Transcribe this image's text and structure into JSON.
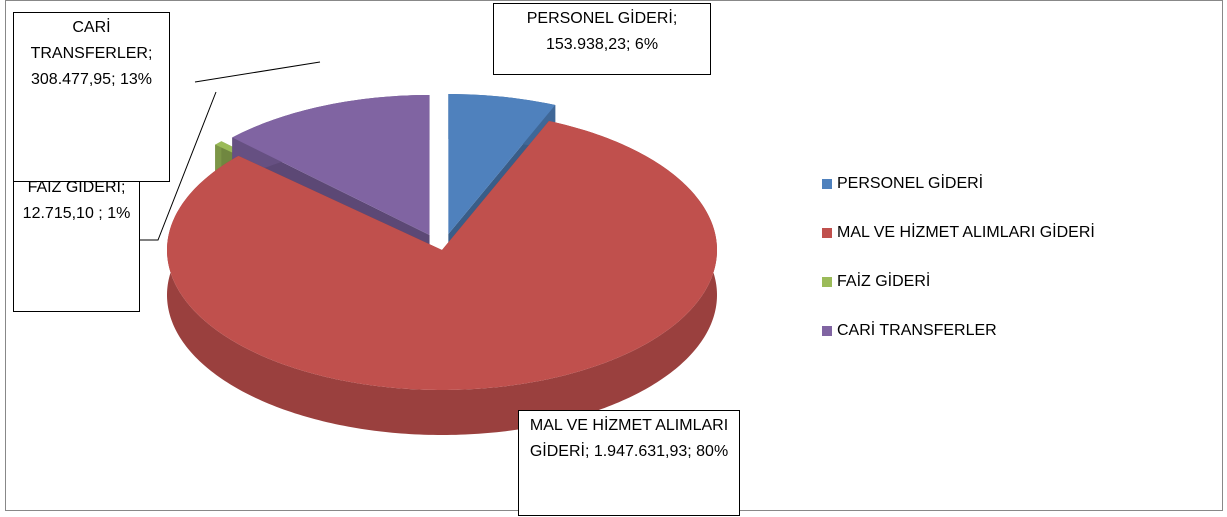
{
  "chart_data": {
    "type": "pie",
    "categories": [
      "PERSONEL GİDERİ",
      "MAL VE HİZMET ALIMLARI GİDERİ",
      "FAİZ GİDERİ",
      "CARİ TRANSFERLER"
    ],
    "values": [
      153938.23,
      1947631.93,
      12715.1,
      308477.95
    ],
    "value_labels": [
      "PERSONEL GİDERİ; 153.938,23; 6%",
      "MAL VE HİZMET ALIMLARI GİDERİ; 1.947.631,93; 80%",
      "FAİZ GİDERİ; 12.715,10 ; 1%",
      "CARİ TRANSFERLER; 308.477,95; 13%"
    ],
    "colors": [
      "#4f81bd",
      "#c0504d",
      "#9bbb59",
      "#8064a2"
    ],
    "legend": "right"
  }
}
